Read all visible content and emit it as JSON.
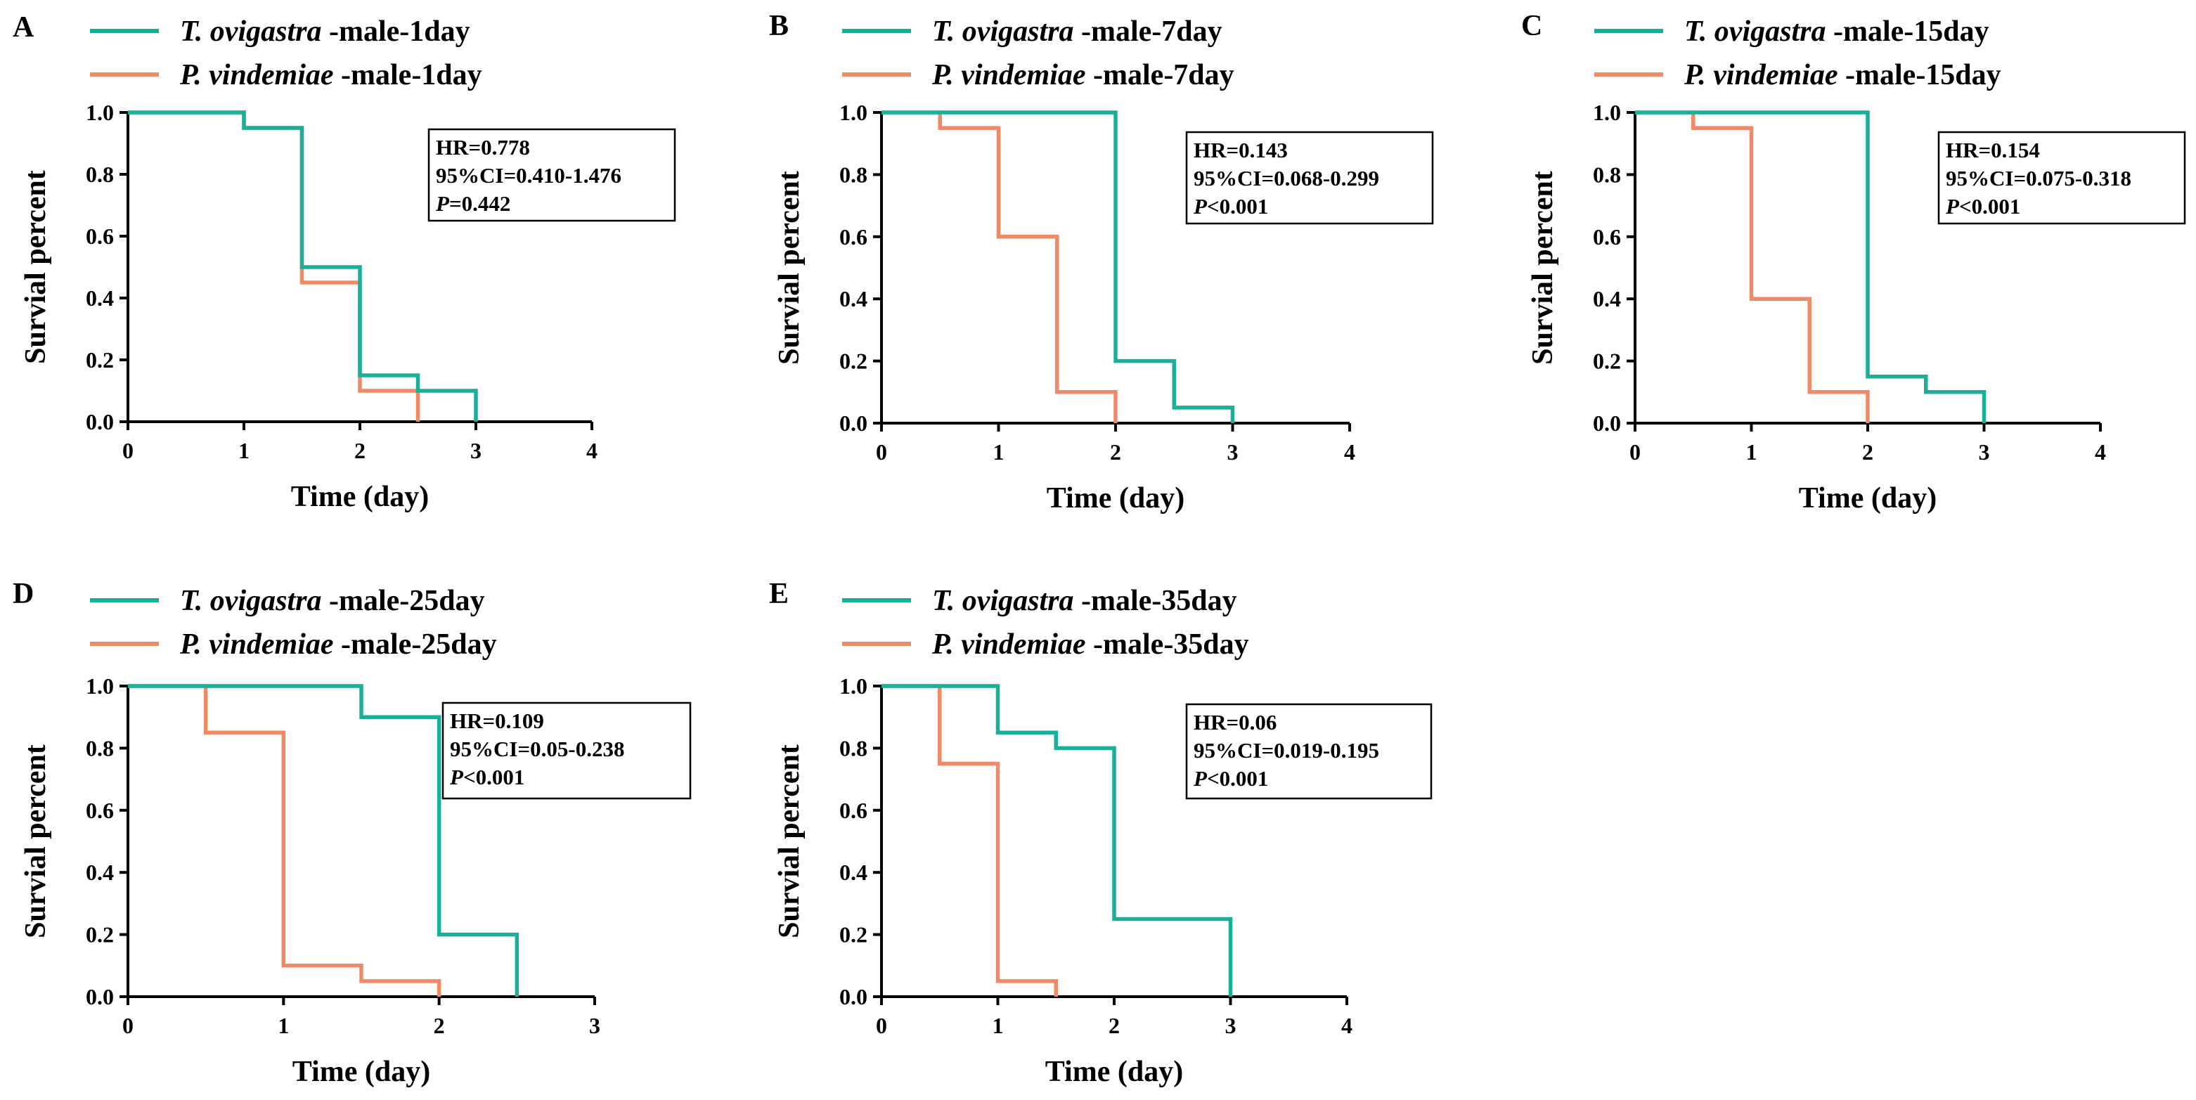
{
  "figure": {
    "colors": {
      "T": "#1aaf98",
      "P": "#f08a66"
    },
    "panels": [
      {
        "letter": "A",
        "legend": [
          {
            "species": "T. ovigastra",
            "suffix": " -male-1day"
          },
          {
            "species": "P. vindemiae",
            "suffix": " -male-1day"
          }
        ],
        "stats": {
          "hr": "HR=0.778",
          "ci": "95%CI=0.410-1.476",
          "p_label": "P",
          "p_value": "=0.442"
        }
      },
      {
        "letter": "B",
        "legend": [
          {
            "species": "T. ovigastra",
            "suffix": " -male-7day"
          },
          {
            "species": "P. vindemiae",
            "suffix": " -male-7day"
          }
        ],
        "stats": {
          "hr": "HR=0.143",
          "ci": "95%CI=0.068-0.299",
          "p_label": "P",
          "p_value": "<0.001"
        }
      },
      {
        "letter": "C",
        "legend": [
          {
            "species": "T. ovigastra",
            "suffix": " -male-15day"
          },
          {
            "species": "P. vindemiae",
            "suffix": " -male-15day"
          }
        ],
        "stats": {
          "hr": "HR=0.154",
          "ci": "95%CI=0.075-0.318",
          "p_label": "P",
          "p_value": "<0.001"
        }
      },
      {
        "letter": "D",
        "legend": [
          {
            "species": "T. ovigastra",
            "suffix": " -male-25day"
          },
          {
            "species": "P. vindemiae",
            "suffix": " -male-25day"
          }
        ],
        "stats": {
          "hr": "HR=0.109",
          "ci": "95%CI=0.05-0.238",
          "p_label": "P",
          "p_value": "<0.001"
        }
      },
      {
        "letter": "E",
        "legend": [
          {
            "species": "T. ovigastra",
            "suffix": " -male-35day"
          },
          {
            "species": "P. vindemiae",
            "suffix": " -male-35day"
          }
        ],
        "stats": {
          "hr": "HR=0.06",
          "ci": "95%CI=0.019-0.195",
          "p_label": "P",
          "p_value": "<0.001"
        }
      }
    ]
  },
  "chart_data": [
    {
      "type": "line",
      "subtype": "step-survival",
      "panel": "A",
      "xlabel": "Time (day)",
      "ylabel": "Survial percent",
      "xlim": [
        0,
        4
      ],
      "ylim": [
        0,
        1
      ],
      "xticks": [
        0,
        1,
        2,
        3,
        4
      ],
      "yticks": [
        "0.0",
        "0.2",
        "0.4",
        "0.6",
        "0.8",
        "1.0"
      ],
      "series": [
        {
          "name": "T. ovigastra -male-1day",
          "key": "T",
          "x": [
            0,
            1,
            1.5,
            2,
            2.5,
            3
          ],
          "y": [
            1.0,
            0.95,
            0.5,
            0.15,
            0.1,
            0.0
          ]
        },
        {
          "name": "P. vindemiae -male-1day",
          "key": "P",
          "x": [
            0,
            1,
            1.5,
            2,
            2.5
          ],
          "y": [
            1.0,
            0.95,
            0.45,
            0.1,
            0.0
          ]
        }
      ]
    },
    {
      "type": "line",
      "subtype": "step-survival",
      "panel": "B",
      "xlabel": "Time (day)",
      "ylabel": "Survial percent",
      "xlim": [
        0,
        4
      ],
      "ylim": [
        0,
        1
      ],
      "xticks": [
        0,
        1,
        2,
        3,
        4
      ],
      "yticks": [
        "0.0",
        "0.2",
        "0.4",
        "0.6",
        "0.8",
        "1.0"
      ],
      "series": [
        {
          "name": "T. ovigastra -male-7day",
          "key": "T",
          "x": [
            0,
            2,
            2.5,
            3
          ],
          "y": [
            1.0,
            0.2,
            0.05,
            0.0
          ]
        },
        {
          "name": "P. vindemiae -male-7day",
          "key": "P",
          "x": [
            0,
            0.5,
            1,
            1.5,
            2
          ],
          "y": [
            1.0,
            0.95,
            0.6,
            0.1,
            0.0
          ]
        }
      ]
    },
    {
      "type": "line",
      "subtype": "step-survival",
      "panel": "C",
      "xlabel": "Time (day)",
      "ylabel": "Survial percent",
      "xlim": [
        0,
        4
      ],
      "ylim": [
        0,
        1
      ],
      "xticks": [
        0,
        1,
        2,
        3,
        4
      ],
      "yticks": [
        "0.0",
        "0.2",
        "0.4",
        "0.6",
        "0.8",
        "1.0"
      ],
      "series": [
        {
          "name": "T. ovigastra -male-15day",
          "key": "T",
          "x": [
            0,
            2,
            2.5,
            3
          ],
          "y": [
            1.0,
            0.15,
            0.1,
            0.0
          ]
        },
        {
          "name": "P. vindemiae -male-15day",
          "key": "P",
          "x": [
            0,
            0.5,
            1,
            1.5,
            2
          ],
          "y": [
            1.0,
            0.95,
            0.4,
            0.1,
            0.0
          ]
        }
      ]
    },
    {
      "type": "line",
      "subtype": "step-survival",
      "panel": "D",
      "xlabel": "Time (day)",
      "ylabel": "Survial percent",
      "xlim": [
        0,
        3
      ],
      "ylim": [
        0,
        1
      ],
      "xticks": [
        0,
        1,
        2,
        3
      ],
      "yticks": [
        "0.0",
        "0.2",
        "0.4",
        "0.6",
        "0.8",
        "1.0"
      ],
      "series": [
        {
          "name": "T. ovigastra -male-25day",
          "key": "T",
          "x": [
            0,
            1.5,
            2,
            2.5
          ],
          "y": [
            1.0,
            0.9,
            0.2,
            0.0
          ]
        },
        {
          "name": "P. vindemiae -male-25day",
          "key": "P",
          "x": [
            0,
            0.5,
            1,
            1.5,
            2
          ],
          "y": [
            1.0,
            0.85,
            0.1,
            0.05,
            0.0
          ]
        }
      ]
    },
    {
      "type": "line",
      "subtype": "step-survival",
      "panel": "E",
      "xlabel": "Time (day)",
      "ylabel": "Survial percent",
      "xlim": [
        0,
        4
      ],
      "ylim": [
        0,
        1
      ],
      "xticks": [
        0,
        1,
        2,
        3,
        4
      ],
      "yticks": [
        "0.0",
        "0.2",
        "0.4",
        "0.6",
        "0.8",
        "1.0"
      ],
      "series": [
        {
          "name": "T. ovigastra -male-35day",
          "key": "T",
          "x": [
            0,
            1,
            1.5,
            2,
            3
          ],
          "y": [
            1.0,
            0.85,
            0.8,
            0.25,
            0.0
          ]
        },
        {
          "name": "P. vindemiae -male-35day",
          "key": "P",
          "x": [
            0,
            0.5,
            1,
            1.5
          ],
          "y": [
            1.0,
            0.75,
            0.05,
            0.0
          ]
        }
      ]
    }
  ]
}
